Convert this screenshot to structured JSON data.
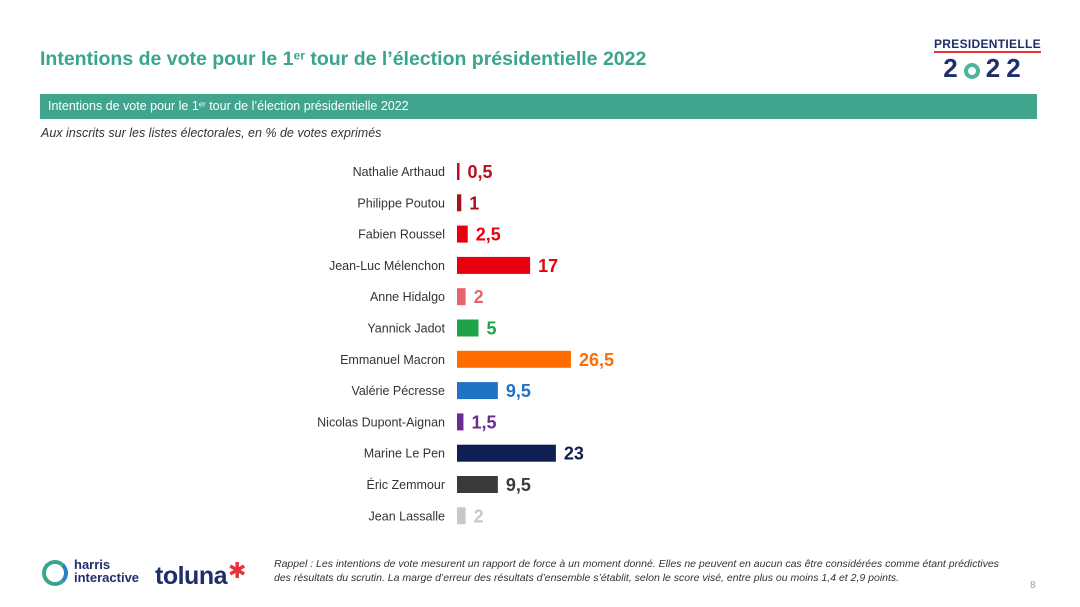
{
  "header": {
    "title_prefix": "Intentions de vote pour le 1",
    "title_sup": "er",
    "title_suffix": " tour de l’élection présidentielle 2022"
  },
  "logo": {
    "top": "PRESIDENTIELLE",
    "year_first": "2",
    "year_rest": "22"
  },
  "band": {
    "text_prefix": "Intentions de vote pour le 1",
    "text_sup": "er",
    "text_suffix": " tour de l’élection présidentielle 2022"
  },
  "subtitle": "Aux inscrits sur les listes électorales, en % de votes exprimés",
  "chart_data": {
    "type": "bar",
    "orientation": "horizontal",
    "title": "Intentions de vote pour le 1er tour de l’élection présidentielle 2022",
    "xlabel": "",
    "ylabel": "",
    "unit": "%",
    "xlim": [
      0,
      30
    ],
    "grid": false,
    "categories": [
      "Nathalie Arthaud",
      "Philippe Poutou",
      "Fabien Roussel",
      "Jean-Luc Mélenchon",
      "Anne Hidalgo",
      "Yannick Jadot",
      "Emmanuel Macron",
      "Valérie Pécresse",
      "Nicolas Dupont-Aignan",
      "Marine Le Pen",
      "Éric Zemmour",
      "Jean Lassalle"
    ],
    "values": [
      0.5,
      1,
      2.5,
      17,
      2,
      5,
      26.5,
      9.5,
      1.5,
      23,
      9.5,
      2
    ],
    "value_labels": [
      "0,5",
      "1",
      "2,5",
      "17",
      "2",
      "5",
      "26,5",
      "9,5",
      "1,5",
      "23",
      "9,5",
      "2"
    ],
    "colors": [
      "#b5121b",
      "#a6111c",
      "#e8000f",
      "#e8000f",
      "#e8636c",
      "#20a24a",
      "#ff6c00",
      "#1f72c4",
      "#6a2c91",
      "#0f1f52",
      "#3a3a3a",
      "#c8c8c8"
    ]
  },
  "footer": {
    "harris_line1": "harris",
    "harris_line2": "interactive",
    "toluna": "toluna",
    "toluna_mark": "✱",
    "note": "Rappel : Les intentions de vote mesurent un rapport de force à un moment donné. Elles ne peuvent en aucun cas être considérées comme étant prédictives des résultats du scrutin. La marge d’erreur des résultats d’ensemble s’établit, selon le score visé, entre plus ou moins 1,4 et 2,9 points.",
    "page_number": "8"
  }
}
